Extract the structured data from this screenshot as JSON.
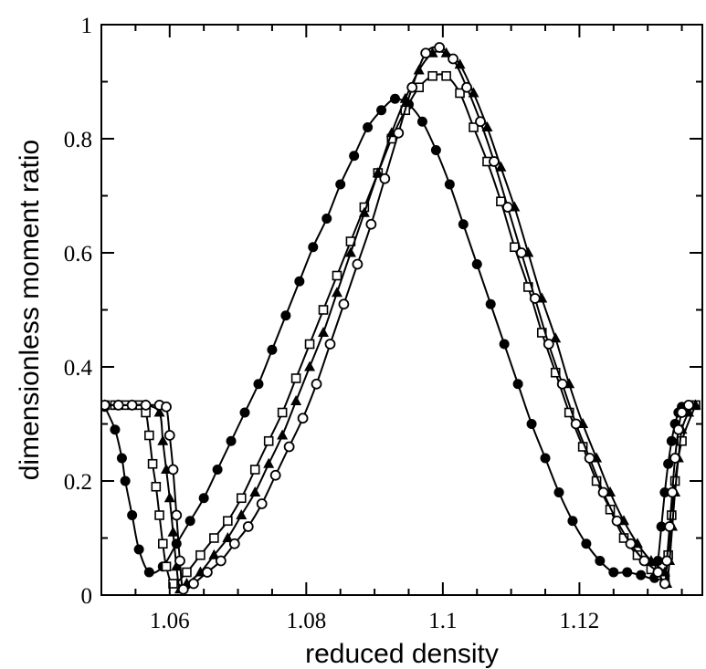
{
  "chart_data": {
    "type": "line",
    "xlabel": "reduced density",
    "ylabel": "dimensionless moment ratio",
    "xlim": [
      1.05,
      1.138
    ],
    "ylim": [
      0,
      1
    ],
    "x_ticks": [
      1.06,
      1.08,
      1.1,
      1.12
    ],
    "x_tick_labels": [
      "1.06",
      "1.08",
      "1.1",
      "1.12"
    ],
    "y_ticks": [
      0,
      0.2,
      0.4,
      0.6,
      0.8,
      1
    ],
    "y_tick_labels": [
      "0",
      "0.2",
      "0.4",
      "0.6",
      "0.8",
      "1"
    ],
    "grid": false,
    "series": [
      {
        "marker": "filled-circle",
        "color": "#000000",
        "x": [
          1.0505,
          1.052,
          1.053,
          1.0535,
          1.0545,
          1.0555,
          1.057,
          1.059,
          1.061,
          1.063,
          1.065,
          1.067,
          1.069,
          1.071,
          1.073,
          1.075,
          1.077,
          1.079,
          1.081,
          1.083,
          1.085,
          1.087,
          1.089,
          1.091,
          1.093,
          1.095,
          1.097,
          1.099,
          1.101,
          1.103,
          1.105,
          1.107,
          1.109,
          1.111,
          1.113,
          1.115,
          1.117,
          1.119,
          1.121,
          1.123,
          1.125,
          1.127,
          1.129,
          1.131,
          1.1315,
          1.132,
          1.1325,
          1.133,
          1.1335,
          1.134,
          1.1345,
          1.135,
          1.136
        ],
        "y": [
          0.33,
          0.29,
          0.24,
          0.2,
          0.14,
          0.08,
          0.04,
          0.05,
          0.09,
          0.13,
          0.17,
          0.22,
          0.27,
          0.32,
          0.37,
          0.43,
          0.49,
          0.55,
          0.61,
          0.66,
          0.72,
          0.77,
          0.82,
          0.85,
          0.87,
          0.86,
          0.83,
          0.78,
          0.72,
          0.65,
          0.58,
          0.51,
          0.44,
          0.37,
          0.3,
          0.24,
          0.18,
          0.13,
          0.09,
          0.06,
          0.04,
          0.04,
          0.035,
          0.03,
          0.06,
          0.12,
          0.18,
          0.23,
          0.27,
          0.3,
          0.32,
          0.33,
          0.333
        ]
      },
      {
        "marker": "open-square",
        "color": "#000000",
        "x": [
          1.0505,
          1.052,
          1.0535,
          1.0555,
          1.0565,
          1.057,
          1.0575,
          1.058,
          1.0585,
          1.059,
          1.0595,
          1.0605,
          1.0625,
          1.0645,
          1.0665,
          1.0685,
          1.0705,
          1.0725,
          1.0745,
          1.0765,
          1.0785,
          1.0805,
          1.0825,
          1.0845,
          1.0865,
          1.0885,
          1.0905,
          1.0925,
          1.0945,
          1.0965,
          1.0985,
          1.1005,
          1.1025,
          1.1045,
          1.1065,
          1.1085,
          1.1105,
          1.1125,
          1.1145,
          1.1165,
          1.1185,
          1.1205,
          1.1225,
          1.1245,
          1.1265,
          1.1285,
          1.1305,
          1.132,
          1.1325,
          1.133,
          1.1335,
          1.134,
          1.135,
          1.137
        ],
        "y": [
          0.333,
          0.333,
          0.333,
          0.333,
          0.32,
          0.28,
          0.23,
          0.19,
          0.14,
          0.09,
          0.05,
          0.02,
          0.04,
          0.07,
          0.1,
          0.13,
          0.17,
          0.22,
          0.27,
          0.32,
          0.38,
          0.44,
          0.5,
          0.56,
          0.62,
          0.68,
          0.74,
          0.8,
          0.85,
          0.89,
          0.91,
          0.91,
          0.88,
          0.82,
          0.76,
          0.69,
          0.61,
          0.54,
          0.46,
          0.39,
          0.32,
          0.26,
          0.2,
          0.15,
          0.1,
          0.07,
          0.045,
          0.035,
          0.03,
          0.07,
          0.14,
          0.2,
          0.27,
          0.333
        ]
      },
      {
        "marker": "filled-triangle",
        "color": "#000000",
        "x": [
          1.0505,
          1.0525,
          1.0545,
          1.0565,
          1.0585,
          1.059,
          1.0595,
          1.06,
          1.0605,
          1.061,
          1.0615,
          1.0625,
          1.0645,
          1.0665,
          1.0685,
          1.0705,
          1.0725,
          1.0745,
          1.0765,
          1.0785,
          1.0805,
          1.0825,
          1.0845,
          1.0865,
          1.0885,
          1.0905,
          1.0925,
          1.0945,
          1.0965,
          1.0985,
          1.1005,
          1.1025,
          1.1045,
          1.1065,
          1.1085,
          1.1105,
          1.1125,
          1.1145,
          1.1165,
          1.1185,
          1.1205,
          1.1225,
          1.1245,
          1.1265,
          1.1285,
          1.1305,
          1.1325,
          1.1328,
          1.1332,
          1.1336,
          1.134,
          1.1345,
          1.135,
          1.136,
          1.137
        ],
        "y": [
          0.333,
          0.333,
          0.333,
          0.333,
          0.32,
          0.27,
          0.22,
          0.17,
          0.11,
          0.05,
          0.01,
          0.02,
          0.04,
          0.07,
          0.1,
          0.14,
          0.18,
          0.23,
          0.28,
          0.34,
          0.4,
          0.46,
          0.53,
          0.6,
          0.67,
          0.74,
          0.81,
          0.87,
          0.92,
          0.95,
          0.95,
          0.93,
          0.88,
          0.82,
          0.75,
          0.68,
          0.6,
          0.52,
          0.45,
          0.37,
          0.3,
          0.24,
          0.18,
          0.13,
          0.09,
          0.06,
          0.04,
          0.02,
          0.06,
          0.12,
          0.18,
          0.24,
          0.29,
          0.32,
          0.333
        ]
      },
      {
        "marker": "open-circle",
        "color": "#000000",
        "x": [
          1.0505,
          1.0525,
          1.0545,
          1.0565,
          1.0585,
          1.0595,
          1.06,
          1.0605,
          1.061,
          1.0615,
          1.062,
          1.0635,
          1.0655,
          1.0675,
          1.0695,
          1.0715,
          1.0735,
          1.0755,
          1.0775,
          1.0795,
          1.0815,
          1.0835,
          1.0855,
          1.0875,
          1.0895,
          1.0915,
          1.0935,
          1.0955,
          1.0975,
          1.0995,
          1.1015,
          1.1035,
          1.1055,
          1.1075,
          1.1095,
          1.1115,
          1.1135,
          1.1155,
          1.1175,
          1.1195,
          1.1215,
          1.1235,
          1.1255,
          1.1275,
          1.1295,
          1.1315,
          1.1325,
          1.1328,
          1.1332,
          1.1336,
          1.134,
          1.1345,
          1.135,
          1.136
        ],
        "y": [
          0.333,
          0.333,
          0.333,
          0.333,
          0.333,
          0.33,
          0.28,
          0.22,
          0.14,
          0.06,
          0.01,
          0.02,
          0.04,
          0.06,
          0.09,
          0.12,
          0.16,
          0.21,
          0.26,
          0.31,
          0.37,
          0.44,
          0.51,
          0.58,
          0.65,
          0.73,
          0.81,
          0.89,
          0.95,
          0.96,
          0.94,
          0.89,
          0.83,
          0.76,
          0.68,
          0.6,
          0.52,
          0.44,
          0.37,
          0.3,
          0.24,
          0.18,
          0.13,
          0.09,
          0.06,
          0.04,
          0.02,
          0.06,
          0.12,
          0.18,
          0.24,
          0.29,
          0.32,
          0.333
        ]
      }
    ]
  }
}
